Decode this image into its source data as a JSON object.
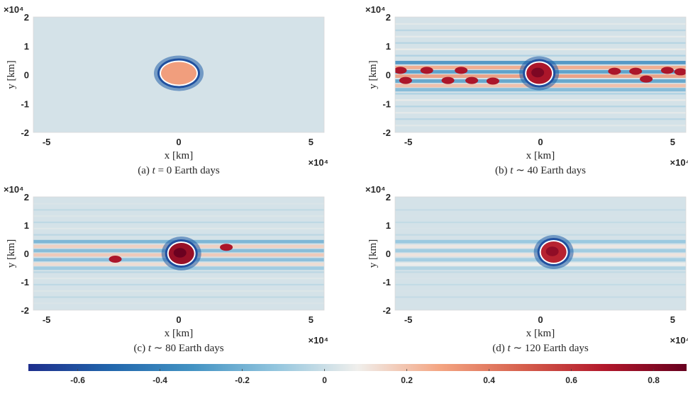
{
  "chart_data": [
    {
      "type": "heatmap",
      "caption": "(a) t = 0 Earth days",
      "caption_parts": [
        "(a) ",
        "t",
        " = 0 Earth days"
      ],
      "xlabel": "x [km]",
      "ylabel": "y [km]",
      "x_ticks": [
        "-5",
        "0",
        "5"
      ],
      "y_ticks": [
        "2",
        "1",
        "0",
        "-1",
        "-2"
      ],
      "x_exponent": "×10⁴",
      "y_exponent": "×10⁴",
      "xlim": [
        -5.5,
        5.5
      ],
      "ylim": [
        -2,
        2
      ],
      "vortex": {
        "x": 0,
        "y": 0.05,
        "value": 0.3
      },
      "band_activity": 0
    },
    {
      "type": "heatmap",
      "caption": "(b) t ∼ 40 Earth days",
      "caption_parts": [
        "(b) ",
        "t",
        " ∼ 40 Earth days"
      ],
      "xlabel": "x [km]",
      "ylabel": "y [km]",
      "x_ticks": [
        "-5",
        "0",
        "5"
      ],
      "y_ticks": [
        "2",
        "1",
        "0",
        "-1",
        "-2"
      ],
      "x_exponent": "×10⁴",
      "y_exponent": "×10⁴",
      "xlim": [
        -5.5,
        5.5
      ],
      "ylim": [
        -2,
        2
      ],
      "vortex": {
        "x": -0.05,
        "y": 0.05,
        "value": 0.7
      },
      "band_activity": 1
    },
    {
      "type": "heatmap",
      "caption": "(c) t ∼ 80 Earth days",
      "caption_parts": [
        "(c) ",
        "t",
        " ∼ 80 Earth days"
      ],
      "xlabel": "x [km]",
      "ylabel": "y [km]",
      "x_ticks": [
        "-5",
        "0",
        "5"
      ],
      "y_ticks": [
        "2",
        "1",
        "0",
        "-1",
        "-2"
      ],
      "x_exponent": "×10⁴",
      "y_exponent": "×10⁴",
      "xlim": [
        -5.5,
        5.5
      ],
      "ylim": [
        -2,
        2
      ],
      "vortex": {
        "x": 0.1,
        "y": 0.0,
        "value": 0.75
      },
      "band_activity": 0.6
    },
    {
      "type": "heatmap",
      "caption": "(d) t ∼ 120 Earth days",
      "caption_parts": [
        "(d) ",
        "t",
        " ∼ 120 Earth days"
      ],
      "xlabel": "x [km]",
      "ylabel": "y [km]",
      "x_ticks": [
        "-5",
        "0",
        "5"
      ],
      "y_ticks": [
        "2",
        "1",
        "0",
        "-1",
        "-2"
      ],
      "x_exponent": "×10⁴",
      "y_exponent": "×10⁴",
      "xlim": [
        -5.5,
        5.5
      ],
      "ylim": [
        -2,
        2
      ],
      "vortex": {
        "x": 0.5,
        "y": 0.05,
        "value": 0.65
      },
      "band_activity": 0.35
    }
  ],
  "colorbar": {
    "min": -0.72,
    "max": 0.88,
    "ticks": [
      "-0.6",
      "-0.4",
      "-0.2",
      "0",
      "0.2",
      "0.4",
      "0.6",
      "0.8"
    ],
    "tick_values": [
      -0.6,
      -0.4,
      -0.2,
      0,
      0.2,
      0.4,
      0.6,
      0.8
    ],
    "colors": [
      "#1e2e8c",
      "#2166ac",
      "#4393c3",
      "#92c5de",
      "#f0efec",
      "#f4a582",
      "#d6604d",
      "#b2182b",
      "#67001f"
    ]
  }
}
